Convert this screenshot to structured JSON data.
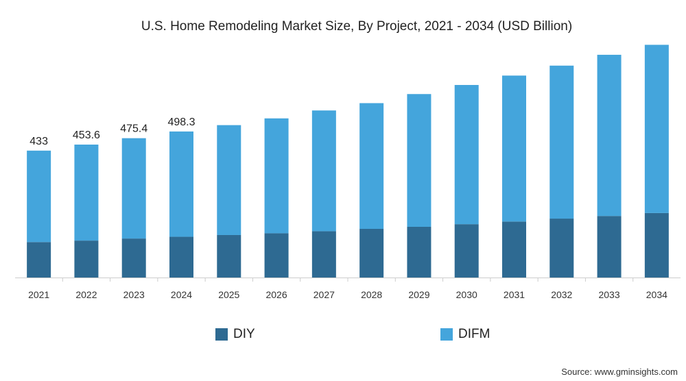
{
  "chart_data": {
    "type": "bar",
    "stacked": true,
    "title": "U.S. Home Remodeling Market Size, By Project, 2021 - 2034 (USD Billion)",
    "categories": [
      "2021",
      "2022",
      "2023",
      "2024",
      "2025",
      "2026",
      "2027",
      "2028",
      "2029",
      "2030",
      "2031",
      "2032",
      "2033",
      "2034"
    ],
    "series": [
      {
        "name": "DIY",
        "values": [
          121,
          126,
          133,
          139,
          145,
          151,
          158,
          166,
          173,
          182,
          191,
          201,
          210,
          220
        ],
        "color": "#2e6a92"
      },
      {
        "name": "DIFM",
        "values": [
          312,
          327.6,
          342.4,
          359.3,
          375,
          392,
          412,
          429,
          453,
          475,
          498,
          522,
          550,
          574
        ],
        "color": "#44a5dc"
      }
    ],
    "totals": [
      433,
      453.6,
      475.4,
      498.3,
      520,
      543,
      570,
      595,
      626,
      657,
      689,
      723,
      760,
      794
    ],
    "data_labels": [
      "433",
      "453.6",
      "475.4",
      "498.3"
    ],
    "ylim": [
      0,
      830
    ],
    "xlabel": "",
    "ylabel": "",
    "grid": false,
    "legend_position": "bottom"
  },
  "source": "Source: www.gminsights.com"
}
